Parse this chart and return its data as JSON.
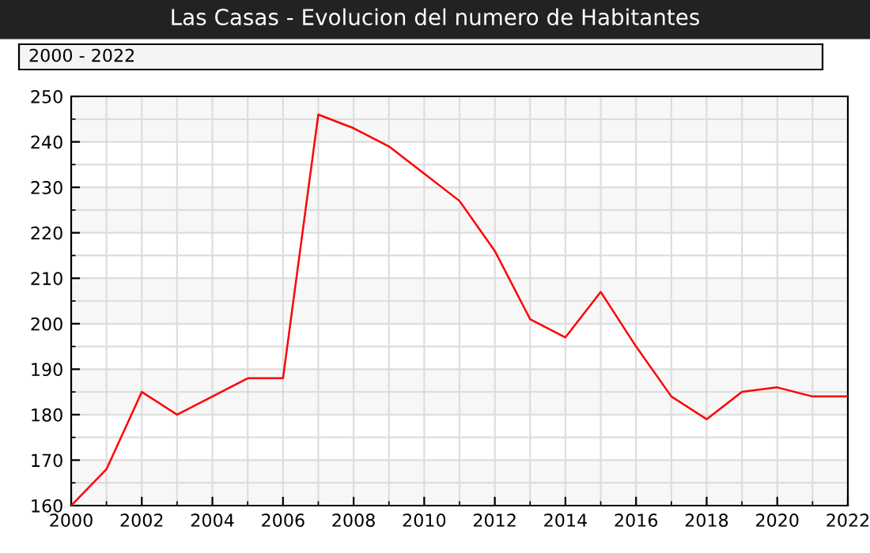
{
  "chart_data": {
    "type": "line",
    "title": "Las Casas - Evolucion del numero de Habitantes",
    "subtitle": "2000 - 2022",
    "x": [
      2000,
      2001,
      2002,
      2003,
      2004,
      2005,
      2006,
      2007,
      2008,
      2009,
      2010,
      2011,
      2012,
      2013,
      2014,
      2015,
      2016,
      2017,
      2018,
      2019,
      2020,
      2021,
      2022
    ],
    "series": [
      {
        "color": "#ff0000",
        "values": [
          160,
          168,
          185,
          180,
          184,
          188,
          188,
          246,
          243,
          239,
          233,
          227,
          216,
          201,
          197,
          207,
          195,
          184,
          179,
          185,
          186,
          184,
          184
        ]
      }
    ],
    "xlim": [
      2000,
      2022
    ],
    "xticks": [
      2000,
      2002,
      2004,
      2006,
      2008,
      2010,
      2012,
      2014,
      2016,
      2018,
      2020,
      2022
    ],
    "ylim": [
      160,
      250
    ],
    "yticks": [
      160,
      170,
      180,
      190,
      200,
      210,
      220,
      230,
      240,
      250
    ],
    "grid": true,
    "marker": "none",
    "line_style": "solid",
    "legend": false
  }
}
